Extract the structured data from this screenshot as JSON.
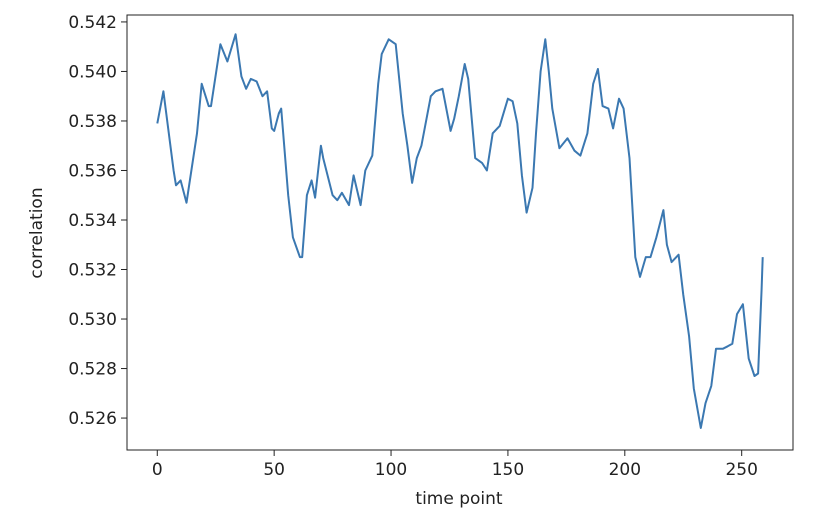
{
  "chart_data": {
    "type": "line",
    "x_label": "time point",
    "y_label": "correlation",
    "x": [
      0,
      2.6,
      7,
      8,
      10,
      12.5,
      17,
      19,
      22,
      23,
      27,
      30,
      33.5,
      36,
      38,
      40,
      42.5,
      45,
      47,
      49,
      50,
      52,
      53,
      56,
      58,
      61,
      62,
      64,
      66,
      67.5,
      70,
      71,
      75,
      77,
      79,
      82,
      84,
      87,
      89,
      92,
      94.5,
      96,
      99,
      102,
      105,
      107,
      109,
      111,
      113,
      117,
      119,
      122,
      125.5,
      127,
      129,
      131.5,
      133,
      136,
      139,
      141,
      143.5,
      146.5,
      150,
      152,
      154,
      156,
      158,
      160.5,
      162,
      164,
      166,
      167.5,
      169,
      172,
      175.5,
      178.5,
      181,
      184,
      186.5,
      188.5,
      190.5,
      193,
      195,
      197.5,
      199.5,
      202,
      204.5,
      206.5,
      209,
      211,
      213.5,
      216.5,
      218,
      220,
      223,
      225,
      227.5,
      229.5,
      232.5,
      234.5,
      237,
      239,
      242,
      244,
      246,
      248,
      250.5,
      253,
      255.5,
      257,
      258.5,
      259
    ],
    "values": [
      0.5379,
      0.5392,
      0.536,
      0.5354,
      0.5356,
      0.5347,
      0.5375,
      0.5395,
      0.5386,
      0.5386,
      0.5411,
      0.5404,
      0.5415,
      0.5398,
      0.5393,
      0.5397,
      0.5396,
      0.539,
      0.5392,
      0.5377,
      0.5376,
      0.5383,
      0.5385,
      0.535,
      0.5333,
      0.5325,
      0.5325,
      0.535,
      0.5356,
      0.5349,
      0.537,
      0.5365,
      0.535,
      0.5348,
      0.5351,
      0.5346,
      0.5358,
      0.5346,
      0.536,
      0.5366,
      0.5395,
      0.5407,
      0.5413,
      0.5411,
      0.5383,
      0.537,
      0.5355,
      0.5365,
      0.537,
      0.539,
      0.5392,
      0.5393,
      0.5376,
      0.5381,
      0.539,
      0.5403,
      0.5397,
      0.5365,
      0.5363,
      0.536,
      0.5375,
      0.5378,
      0.5389,
      0.5388,
      0.5379,
      0.5358,
      0.5343,
      0.5353,
      0.5375,
      0.54,
      0.5413,
      0.54,
      0.5385,
      0.5369,
      0.5373,
      0.5368,
      0.5366,
      0.5375,
      0.5395,
      0.5401,
      0.5386,
      0.5385,
      0.5377,
      0.5389,
      0.5385,
      0.5365,
      0.5325,
      0.5317,
      0.5325,
      0.5325,
      0.5333,
      0.5344,
      0.533,
      0.5323,
      0.5326,
      0.531,
      0.5293,
      0.5272,
      0.5256,
      0.5266,
      0.5273,
      0.5288,
      0.5288,
      0.5289,
      0.529,
      0.5302,
      0.5306,
      0.5284,
      0.5277,
      0.5278,
      0.5312,
      0.5325
    ],
    "color": "#3b78b1",
    "xlim": [
      -12.95,
      271.95
    ],
    "xticks": [
      0,
      50,
      100,
      150,
      200,
      250
    ],
    "ylim": [
      0.52471,
      0.54228
    ],
    "yticks": [
      0.526,
      0.528,
      {
        "value": 0.53,
        "label": "0.530"
      },
      0.532,
      0.534,
      0.536,
      0.538,
      {
        "value": 0.54,
        "label": "0.540"
      },
      0.542
    ]
  }
}
